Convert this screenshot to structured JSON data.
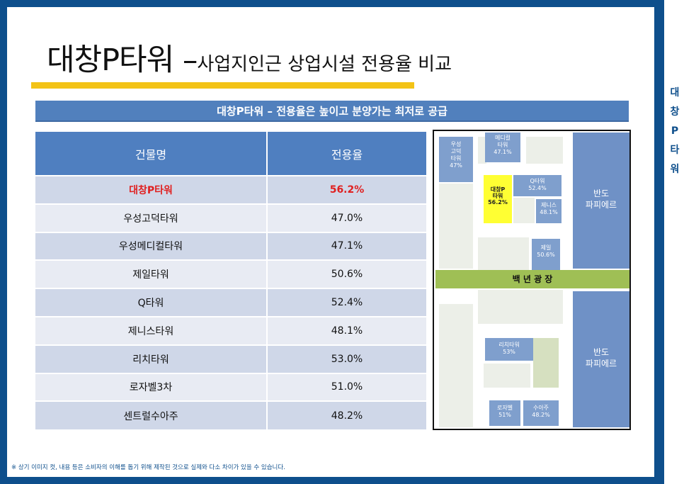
{
  "title": {
    "main": "대창P타워 –",
    "sub": "사업지인근 상업시설 전용율 비교"
  },
  "side_label": [
    "대",
    "창",
    "P",
    "타",
    "워"
  ],
  "banner": "대창P타워 – 전용율은 높이고 분양가는 최저로 공급",
  "table": {
    "headers": [
      "건물명",
      "전용율"
    ],
    "rows": [
      {
        "name": "대창P타워",
        "rate": "56.2%"
      },
      {
        "name": "우성고덕타워",
        "rate": "47.0%"
      },
      {
        "name": "우성메디컬타워",
        "rate": "47.1%"
      },
      {
        "name": "제일타워",
        "rate": "50.6%"
      },
      {
        "name": "Q타워",
        "rate": "52.4%"
      },
      {
        "name": "제니스타워",
        "rate": "48.1%"
      },
      {
        "name": "리치타워",
        "rate": "53.0%"
      },
      {
        "name": "로자벨3차",
        "rate": "51.0%"
      },
      {
        "name": "센트럴수아주",
        "rate": "48.2%"
      }
    ]
  },
  "map": {
    "woosung_godeok": [
      "우성",
      "고덕",
      "타워",
      "47%"
    ],
    "medical": [
      "메디컬",
      "타워",
      "47.1%"
    ],
    "daechang": [
      "대창P",
      "타워",
      "56.2%"
    ],
    "q_tower": [
      "Q타워",
      "52.4%"
    ],
    "zenith": [
      "제니스",
      "48.1%"
    ],
    "jeil": [
      "제일",
      "50.6%"
    ],
    "bando_top": [
      "반도",
      "파피에르"
    ],
    "plaza": "백 년 광 장",
    "rich": [
      "리치타워",
      "53%"
    ],
    "bando_bottom": [
      "반도",
      "파피에르"
    ],
    "rosabel": [
      "로자벨",
      "51%"
    ],
    "suaju": [
      "수아주",
      "48.2%"
    ]
  },
  "footnote": "※ 상기 이미지 컷, 내용 등은 소비자의 이해를 돕기 위해 제작된 것으로 실제와 다소 차이가 있을 수 있습니다."
}
